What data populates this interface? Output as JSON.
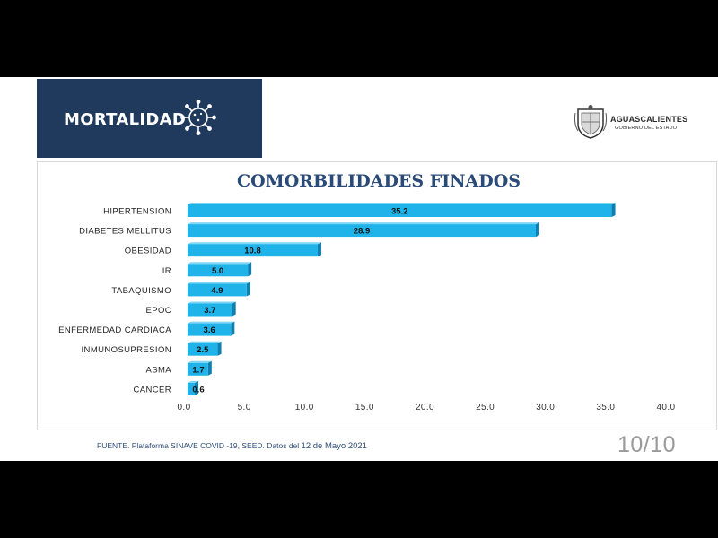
{
  "header": {
    "title": "MORTALIDAD",
    "icon": "virus-icon",
    "background": "#1f3a5c"
  },
  "logo": {
    "name": "AGUASCALIENTES",
    "subtitle": "GOBIERNO DEL ESTADO",
    "icon": "state-crest-icon"
  },
  "chart_data": {
    "type": "bar",
    "orientation": "horizontal",
    "title": "COMORBILIDADES FINADOS",
    "categories": [
      "HIPERTENSION",
      "DIABETES MELLITUS",
      "OBESIDAD",
      "IR",
      "TABAQUISMO",
      "EPOC",
      "ENFERMEDAD CARDIACA",
      "INMUNOSUPRESION",
      "ASMA",
      "CANCER"
    ],
    "values": [
      35.2,
      28.9,
      10.8,
      5.0,
      4.9,
      3.7,
      3.6,
      2.5,
      1.7,
      0.6
    ],
    "value_labels": [
      "35.2",
      "28.9",
      "10.8",
      "5.0",
      "4.9",
      "3.7",
      "3.6",
      "2.5",
      "1.7",
      "0.6"
    ],
    "xlim": [
      0,
      40
    ],
    "xticks": [
      "0.0",
      "5.0",
      "10.0",
      "15.0",
      "20.0",
      "25.0",
      "30.0",
      "35.0",
      "40.0"
    ],
    "bar_color": "#1fb3ea",
    "grid": false,
    "legend": false
  },
  "footer": {
    "source_prefix": "FUENTE. Plataforma SINAVE COVID -19, SEED. Datos del ",
    "source_date": "12 de Mayo 2021",
    "page": "10/10"
  }
}
